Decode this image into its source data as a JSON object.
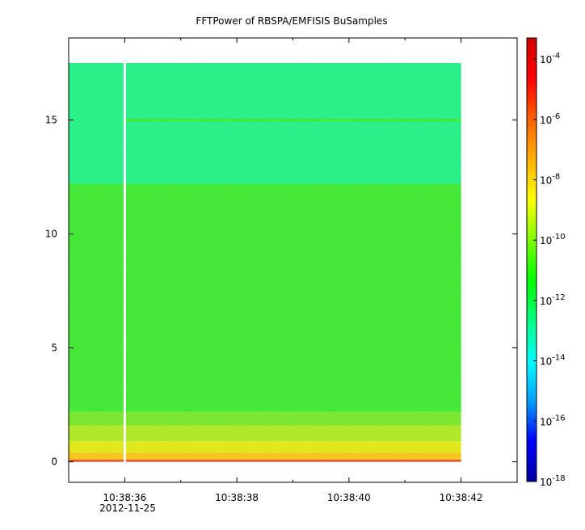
{
  "chart_data": {
    "type": "heatmap",
    "title": "FFTPower of RBSPA/EMFISIS  BuSamples",
    "xlabel": "",
    "ylabel": "",
    "x_ticks": [
      {
        "t": 36,
        "label": "10:38:36"
      },
      {
        "t": 38,
        "label": "10:38:38"
      },
      {
        "t": 40,
        "label": "10:38:40"
      },
      {
        "t": 42,
        "label": "10:38:42"
      }
    ],
    "x_minor_ticks": [
      35,
      37,
      39,
      41,
      43
    ],
    "x_date_label": "2012-11-25",
    "xlim_seconds": [
      35.0,
      43.0
    ],
    "ylim": [
      -0.9,
      18.6
    ],
    "y_ticks": [
      0,
      5,
      10,
      15
    ],
    "colorbar": {
      "scale": "log",
      "range_exp": [
        -18,
        -3.3
      ],
      "ticks": [
        {
          "exp": -4,
          "base": "10",
          "sup": "-4"
        },
        {
          "exp": -6,
          "base": "10",
          "sup": "-6"
        },
        {
          "exp": -8,
          "base": "10",
          "sup": "-8"
        },
        {
          "exp": -10,
          "base": "10",
          "sup": "-10"
        },
        {
          "exp": -12,
          "base": "10",
          "sup": "-12"
        },
        {
          "exp": -14,
          "base": "10",
          "sup": "-14"
        },
        {
          "exp": -16,
          "base": "10",
          "sup": "-16"
        },
        {
          "exp": -18,
          "base": "10",
          "sup": "-18"
        }
      ],
      "colors": [
        "#0000a0",
        "#0000ff",
        "#00a0ff",
        "#00ffff",
        "#00ff80",
        "#00ff00",
        "#80ff00",
        "#ffff00",
        "#ffb000",
        "#ff6000",
        "#ff0000",
        "#d00000"
      ]
    },
    "data_extent": {
      "t_start": 35.0,
      "t_end": 42.0,
      "f_min": 0.0,
      "f_max": 17.5
    },
    "gap_at_seconds": 36.0,
    "bands": [
      {
        "f_from": 12.2,
        "f_to": 17.5,
        "log_power": -11.6,
        "color": "#10f880"
      },
      {
        "f_from": 2.2,
        "f_to": 12.2,
        "log_power": -10.2,
        "color": "#30f020"
      },
      {
        "f_from": 1.6,
        "f_to": 2.2,
        "log_power": -9.5,
        "color": "#70ef18"
      },
      {
        "f_from": 0.9,
        "f_to": 1.6,
        "log_power": -8.8,
        "color": "#b0f010"
      },
      {
        "f_from": 0.4,
        "f_to": 0.9,
        "log_power": -8.2,
        "color": "#e8f000"
      },
      {
        "f_from": 0.1,
        "f_to": 0.4,
        "log_power": -7.5,
        "color": "#ffc800"
      },
      {
        "f_from": 0.0,
        "f_to": 0.1,
        "log_power": -6.0,
        "color": "#f04010"
      }
    ],
    "line_15hz": {
      "f": 15.0,
      "color": "#50e800"
    }
  }
}
